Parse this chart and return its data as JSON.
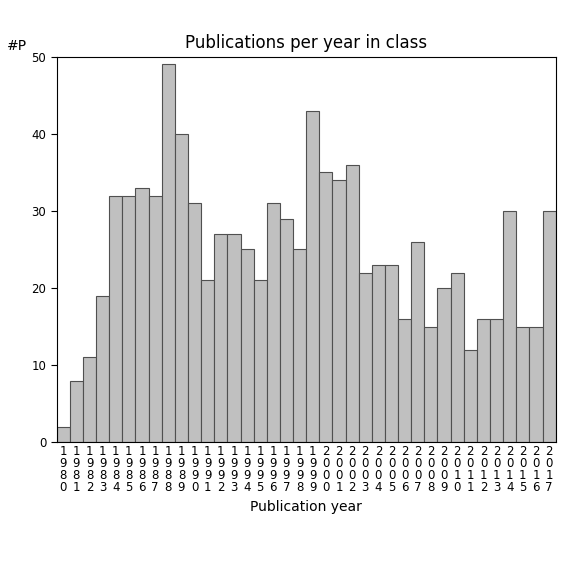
{
  "title": "Publications per year in class",
  "xlabel": "Publication year",
  "ylabel": "#P",
  "years": [
    1980,
    1981,
    1982,
    1983,
    1984,
    1985,
    1986,
    1987,
    1988,
    1989,
    1990,
    1991,
    1992,
    1993,
    1994,
    1995,
    1996,
    1997,
    1998,
    1999,
    2000,
    2001,
    2002,
    2003,
    2004,
    2005,
    2006,
    2007,
    2008,
    2009,
    2010,
    2011,
    2012,
    2013,
    2014,
    2015,
    2016,
    2017
  ],
  "values": [
    2,
    8,
    11,
    19,
    32,
    32,
    33,
    32,
    49,
    40,
    31,
    21,
    27,
    27,
    25,
    21,
    31,
    29,
    25,
    43,
    35,
    34,
    36,
    22,
    23,
    23,
    16,
    26,
    15,
    20,
    22,
    12,
    16,
    16,
    30,
    15,
    15,
    30
  ],
  "ylim": [
    0,
    50
  ],
  "yticks": [
    0,
    10,
    20,
    30,
    40,
    50
  ],
  "bar_color": "#c0c0c0",
  "bar_edgecolor": "#505050",
  "background_color": "#ffffff",
  "title_fontsize": 12,
  "label_fontsize": 10,
  "tick_fontsize": 8.5
}
